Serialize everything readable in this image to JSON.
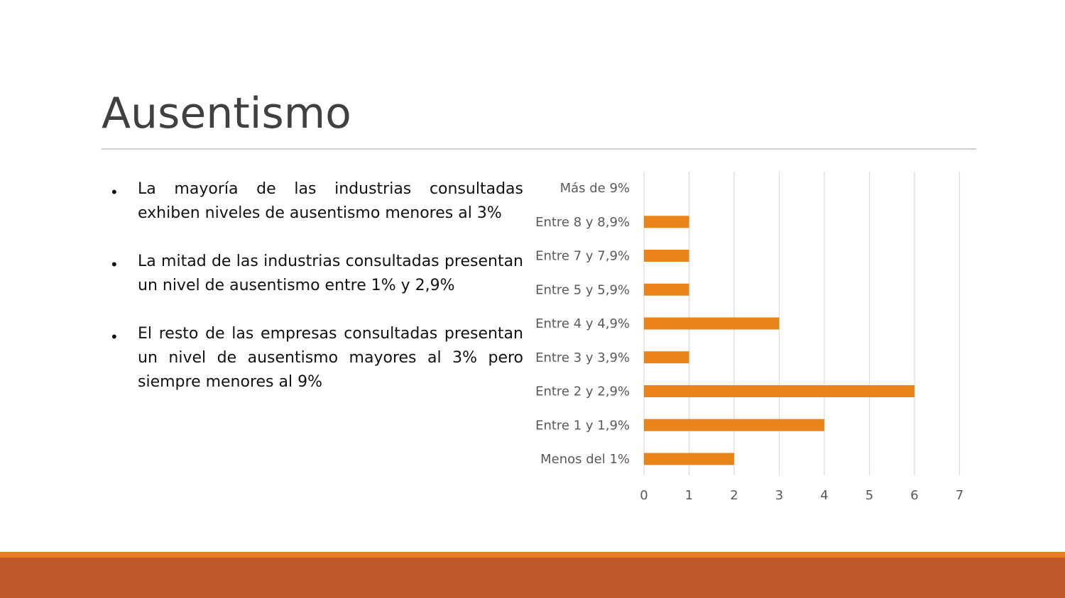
{
  "slide": {
    "title": "Ausentismo",
    "bullets": [
      "La mayoría de las industrias consultadas exhiben niveles de ausentismo menores al 3%",
      "La mitad de las industrias consultadas presentan un nivel de ausentismo entre 1% y 2,9%",
      "El resto de las empresas consultadas presentan un nivel de ausentismo mayores al 3% pero siempre menores al 9%"
    ]
  },
  "colors": {
    "bar": "#e8841a",
    "grid": "#dadada",
    "footer_line": "#e8801a",
    "footer_band": "#c0582b"
  },
  "chart_data": {
    "type": "bar",
    "orientation": "horizontal",
    "categories": [
      "Más de 9%",
      "Entre 8 y 8,9%",
      "Entre 7 y 7,9%",
      "Entre 5 y 5,9%",
      "Entre 4 y 4,9%",
      "Entre 3 y 3,9%",
      "Entre 2 y 2,9%",
      "Entre 1 y 1,9%",
      "Menos del 1%"
    ],
    "values": [
      0,
      1,
      1,
      1,
      3,
      1,
      6,
      4,
      2
    ],
    "xlim": [
      0,
      7
    ],
    "xticks": [
      "0",
      "1",
      "2",
      "3",
      "4",
      "5",
      "6",
      "7"
    ],
    "grid": "vertical",
    "legend": "none"
  }
}
